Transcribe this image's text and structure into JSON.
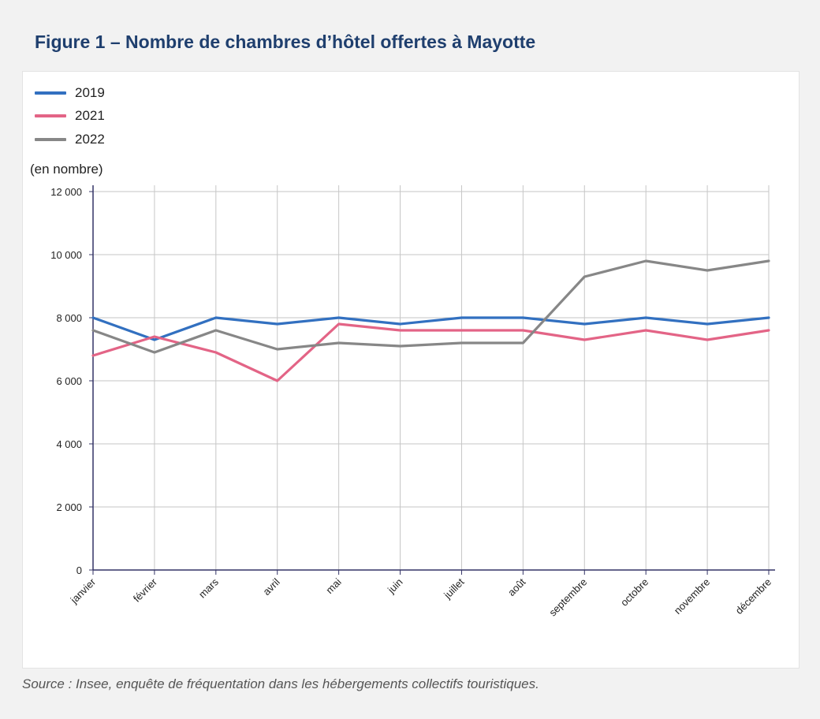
{
  "title": "Figure 1 – Nombre de chambres d’hôtel offertes à Mayotte",
  "source": "Source : Insee, enquête de fréquentation dans les hébergements collectifs touristiques.",
  "chart_data": {
    "type": "line",
    "ylabel": "(en nombre)",
    "xlabel": "",
    "ylim": [
      0,
      12000
    ],
    "yticks": [
      0,
      2000,
      4000,
      6000,
      8000,
      10000,
      12000
    ],
    "ytick_labels": [
      "0",
      "2 000",
      "4 000",
      "6 000",
      "8 000",
      "10 000",
      "12 000"
    ],
    "categories": [
      "janvier",
      "février",
      "mars",
      "avril",
      "mai",
      "juin",
      "juillet",
      "août",
      "septembre",
      "octobre",
      "novembre",
      "décembre"
    ],
    "grid": true,
    "legend_position": "top-left",
    "series": [
      {
        "name": "2019",
        "color": "#3270c0",
        "values": [
          8000,
          7300,
          8000,
          7800,
          8000,
          7800,
          8000,
          8000,
          7800,
          8000,
          7800,
          8000
        ]
      },
      {
        "name": "2021",
        "color": "#e36486",
        "values": [
          6800,
          7400,
          6900,
          6000,
          7800,
          7600,
          7600,
          7600,
          7300,
          7600,
          7300,
          7600
        ]
      },
      {
        "name": "2022",
        "color": "#878787",
        "values": [
          7600,
          6900,
          7600,
          7000,
          7200,
          7100,
          7200,
          7200,
          9300,
          9800,
          9500,
          9800
        ]
      }
    ]
  }
}
